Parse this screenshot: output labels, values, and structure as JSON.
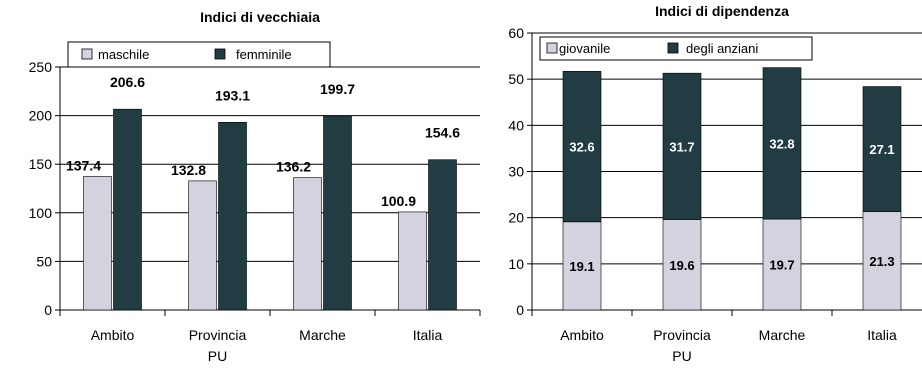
{
  "colors": {
    "light": "#d4d2de",
    "dark": "#213c42",
    "axis": "#000000"
  },
  "chart_data": [
    {
      "type": "bar",
      "title": "Indici di vecchiaia",
      "categories": [
        "Ambito",
        "Provincia\nPU",
        "Marche",
        "Italia"
      ],
      "ylim": [
        0,
        250
      ],
      "yticks": [
        0,
        50,
        100,
        150,
        200,
        250
      ],
      "grid": true,
      "legend": "top-left",
      "series": [
        {
          "name": "maschile",
          "values": [
            137.4,
            132.8,
            136.2,
            100.9
          ],
          "labels": [
            "137.4",
            "132.8",
            "136.2",
            "100.9"
          ]
        },
        {
          "name": "femminile",
          "values": [
            206.6,
            193.1,
            199.7,
            154.6
          ],
          "labels": [
            "206.6",
            "193.1",
            "199.7",
            "154.6"
          ]
        }
      ]
    },
    {
      "type": "bar",
      "stacked": true,
      "title": "Indici di dipendenza",
      "categories": [
        "Ambito",
        "Provincia\nPU",
        "Marche",
        "Italia"
      ],
      "ylim": [
        0,
        60
      ],
      "yticks": [
        0,
        10,
        20,
        30,
        40,
        50,
        60
      ],
      "grid": true,
      "legend": "top-left",
      "series": [
        {
          "name": "giovanile",
          "values": [
            19.1,
            19.6,
            19.7,
            21.3
          ],
          "labels": [
            "19.1",
            "19.6",
            "19.7",
            "21.3"
          ]
        },
        {
          "name": "degli anziani",
          "values": [
            32.6,
            31.7,
            32.8,
            27.1
          ],
          "labels": [
            "32.6",
            "31.7",
            "32.8",
            "27.1"
          ]
        }
      ]
    }
  ]
}
